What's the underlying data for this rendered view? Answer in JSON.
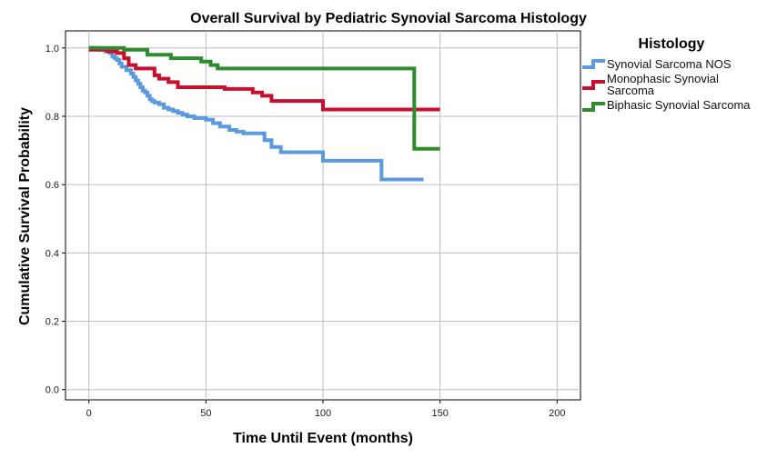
{
  "chart_data": {
    "type": "line",
    "title": "Overall Survival by Pediatric Synovial Sarcoma Histology",
    "xlabel": "Time Until Event (months)",
    "ylabel": "Cumulative Survival Probability",
    "xlim": [
      -10,
      210
    ],
    "ylim": [
      -0.03,
      1.05
    ],
    "xticks": [
      0,
      50,
      100,
      150,
      200
    ],
    "xtick_labels": [
      "0",
      "50",
      "100",
      "150",
      "200"
    ],
    "yticks": [
      0.0,
      0.2,
      0.4,
      0.6,
      0.8,
      1.0
    ],
    "ytick_labels": [
      "0.0",
      "0.2",
      "0.4",
      "0.6",
      "0.8",
      "1.0"
    ],
    "grid": true,
    "legend_title": "Histology",
    "legend_position": "right",
    "series": [
      {
        "name": "Synovial Sarcoma NOS",
        "color": "#5a9ae0",
        "step": true,
        "x": [
          0,
          5,
          7,
          9,
          10,
          11,
          12,
          13,
          14,
          16,
          18,
          19,
          20,
          21,
          22,
          23,
          24,
          25,
          26,
          27,
          28,
          30,
          32,
          34,
          36,
          38,
          40,
          42,
          45,
          50,
          53,
          56,
          60,
          63,
          66,
          70,
          75,
          78,
          82,
          85,
          90,
          100,
          110,
          125,
          143
        ],
        "y": [
          1.0,
          0.995,
          0.99,
          0.985,
          0.975,
          0.97,
          0.965,
          0.955,
          0.945,
          0.935,
          0.925,
          0.915,
          0.905,
          0.895,
          0.885,
          0.875,
          0.87,
          0.86,
          0.85,
          0.845,
          0.84,
          0.835,
          0.825,
          0.82,
          0.815,
          0.81,
          0.805,
          0.8,
          0.795,
          0.79,
          0.78,
          0.77,
          0.76,
          0.755,
          0.75,
          0.75,
          0.73,
          0.71,
          0.695,
          0.695,
          0.695,
          0.67,
          0.67,
          0.615,
          0.615
        ]
      },
      {
        "name": "Monophasic Synovial Sarcoma",
        "color": "#c8102e",
        "step": true,
        "x": [
          0,
          8,
          12,
          15,
          17,
          20,
          22,
          28,
          30,
          34,
          38,
          48,
          58,
          70,
          74,
          78,
          100,
          110,
          150
        ],
        "y": [
          0.995,
          0.99,
          0.985,
          0.97,
          0.95,
          0.94,
          0.94,
          0.92,
          0.91,
          0.9,
          0.885,
          0.885,
          0.88,
          0.87,
          0.86,
          0.845,
          0.82,
          0.82,
          0.82
        ]
      },
      {
        "name": "Biphasic Synovial Sarcoma",
        "color": "#2e8b2e",
        "step": true,
        "x": [
          0,
          15,
          25,
          35,
          48,
          52,
          55,
          70,
          139,
          150
        ],
        "y": [
          1.0,
          0.995,
          0.98,
          0.97,
          0.96,
          0.95,
          0.94,
          0.94,
          0.705,
          0.705
        ]
      }
    ]
  }
}
